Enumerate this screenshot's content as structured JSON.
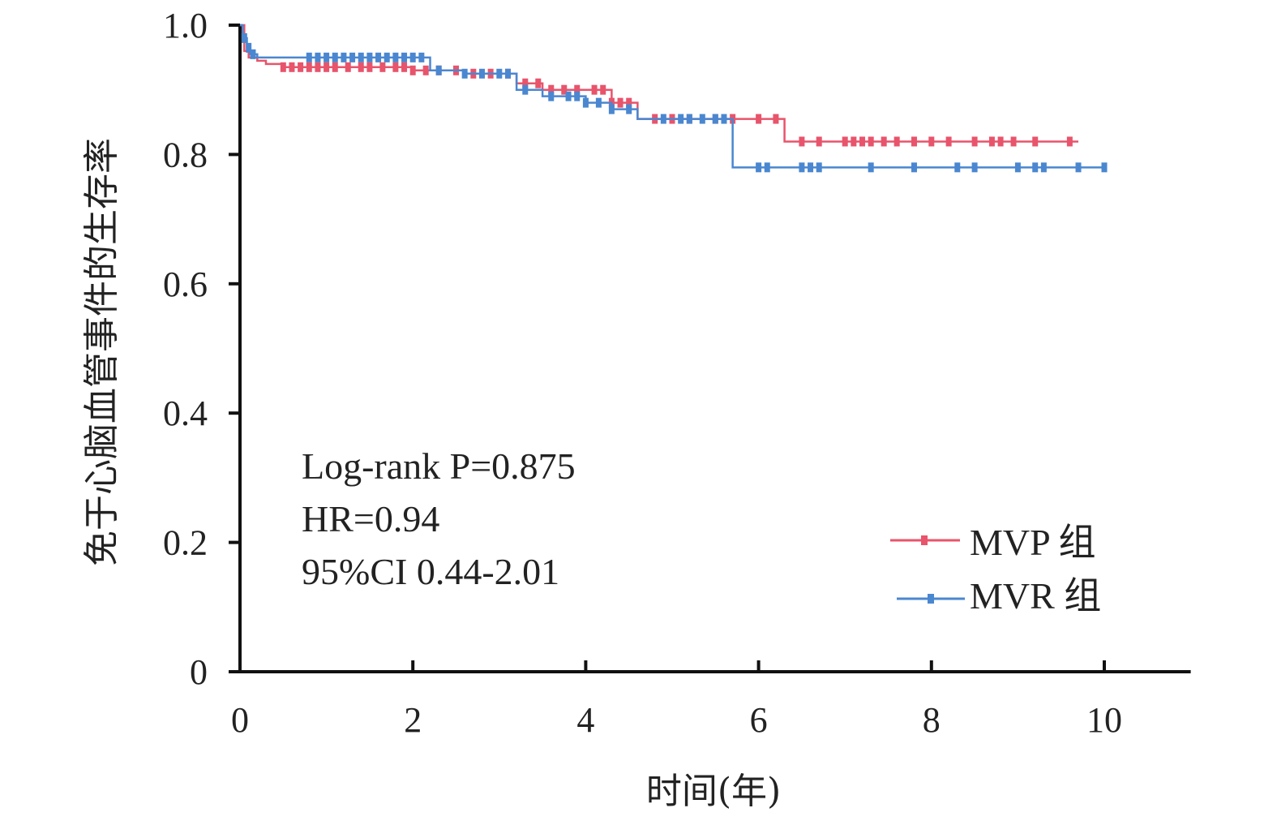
{
  "chart_data": {
    "type": "line",
    "title": "",
    "xlabel": "时间(年)",
    "ylabel": "免于心脑血管事件的生存率",
    "xlim": [
      0,
      11
    ],
    "ylim": [
      0,
      1.0
    ],
    "x_ticks": [
      0,
      2,
      4,
      6,
      8,
      10
    ],
    "y_ticks": [
      0,
      0.2,
      0.4,
      0.6,
      0.8,
      1.0
    ],
    "y_tick_labels": [
      "0",
      "0.2",
      "0.4",
      "0.6",
      "0.8",
      "1.0"
    ],
    "grid": false,
    "legend_position": "bottom-right",
    "annotations": [
      "Log-rank P=0.875",
      "HR=0.94",
      "95%CI 0.44-2.01"
    ],
    "series": [
      {
        "name": "MVP 组",
        "color": "#e8546b",
        "step_x": [
          0,
          0.05,
          0.1,
          0.2,
          0.3,
          0.5,
          1.0,
          2.0,
          2.6,
          3.2,
          3.5,
          4.3,
          4.6,
          5.0,
          6.3,
          9.7
        ],
        "step_y": [
          1.0,
          0.96,
          0.95,
          0.945,
          0.94,
          0.935,
          0.935,
          0.93,
          0.925,
          0.91,
          0.9,
          0.88,
          0.855,
          0.855,
          0.82,
          0.82
        ],
        "censor_x": [
          0.5,
          0.6,
          0.7,
          0.8,
          0.9,
          1.0,
          1.1,
          1.25,
          1.4,
          1.5,
          1.65,
          1.8,
          1.9,
          2.0,
          2.15,
          2.3,
          2.5,
          2.7,
          2.9,
          3.1,
          3.3,
          3.45,
          3.6,
          3.75,
          3.9,
          4.1,
          4.2,
          4.3,
          4.4,
          4.5,
          4.8,
          5.0,
          5.2,
          5.5,
          5.7,
          6.0,
          6.2,
          6.5,
          6.7,
          7.0,
          7.1,
          7.2,
          7.3,
          7.45,
          7.6,
          7.8,
          8.0,
          8.2,
          8.5,
          8.7,
          8.8,
          8.95,
          9.2,
          9.6
        ]
      },
      {
        "name": "MVR 组",
        "color": "#4a87d0",
        "step_x": [
          0,
          0.03,
          0.08,
          0.12,
          0.2,
          1.5,
          2.2,
          2.6,
          3.2,
          3.5,
          4.0,
          4.3,
          4.6,
          5.6,
          5.7,
          10.0
        ],
        "step_y": [
          1.0,
          0.98,
          0.965,
          0.955,
          0.95,
          0.95,
          0.93,
          0.925,
          0.9,
          0.89,
          0.88,
          0.87,
          0.855,
          0.855,
          0.78,
          0.78
        ],
        "censor_x": [
          0.05,
          0.1,
          0.15,
          0.8,
          0.9,
          1.0,
          1.1,
          1.2,
          1.3,
          1.4,
          1.5,
          1.6,
          1.7,
          1.8,
          1.9,
          2.0,
          2.1,
          2.3,
          2.6,
          2.8,
          3.0,
          3.1,
          3.3,
          3.6,
          3.8,
          3.9,
          4.0,
          4.15,
          4.3,
          4.5,
          4.9,
          5.1,
          5.2,
          5.35,
          5.5,
          5.6,
          6.0,
          6.1,
          6.5,
          6.6,
          6.7,
          7.3,
          7.8,
          8.3,
          8.5,
          9.0,
          9.2,
          9.3,
          9.7,
          10.0
        ]
      }
    ]
  }
}
